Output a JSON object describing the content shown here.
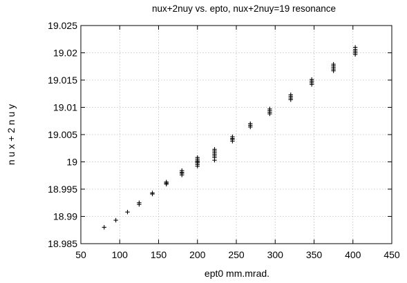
{
  "chart_data": {
    "type": "scatter",
    "title": "nux+2nuy vs.  epto, nux+2nuy=19 resonance",
    "xlabel": "ept0  mm.mrad.",
    "ylabel": "n u x + 2 n u y",
    "xlim": [
      50,
      450
    ],
    "ylim": [
      18.985,
      19.025
    ],
    "xticks": [
      50,
      100,
      150,
      200,
      250,
      300,
      350,
      400,
      450
    ],
    "yticks": [
      18.985,
      18.99,
      18.995,
      19,
      19.005,
      19.01,
      19.015,
      19.02,
      19.025
    ],
    "xtick_labels": [
      "50",
      "100",
      "150",
      "200",
      "250",
      "300",
      "350",
      "400",
      "450"
    ],
    "ytick_labels": [
      "18.985",
      "18.99",
      "18.995",
      "19",
      "19.005",
      "19.01",
      "19.015",
      "19.02",
      "19.025"
    ],
    "grid": true,
    "marker": "+",
    "series": [
      {
        "points": [
          {
            "x": 80,
            "y": [
              18.988
            ]
          },
          {
            "x": 95,
            "y": [
              18.9893
            ]
          },
          {
            "x": 110,
            "y": [
              18.9908
            ]
          },
          {
            "x": 125,
            "y": [
              18.9922,
              18.9925
            ]
          },
          {
            "x": 142,
            "y": [
              18.9941,
              18.9943
            ]
          },
          {
            "x": 160,
            "y": [
              18.9959,
              18.9961,
              18.9963
            ]
          },
          {
            "x": 180,
            "y": [
              18.9976,
              18.9979,
              18.9981,
              18.9984
            ]
          },
          {
            "x": 200,
            "y": [
              18.9992,
              18.9995,
              18.9998,
              19.0,
              19.0002,
              19.0005,
              19.0008
            ]
          },
          {
            "x": 222,
            "y": [
              19.0003,
              19.0008,
              19.0011,
              19.0014,
              19.0017,
              19.002,
              19.0023
            ]
          },
          {
            "x": 245,
            "y": [
              19.0038,
              19.0041,
              19.0043,
              19.0046
            ]
          },
          {
            "x": 268,
            "y": [
              19.0064,
              19.0067,
              19.007
            ]
          },
          {
            "x": 293,
            "y": [
              19.0088,
              19.0091,
              19.0094,
              19.0097
            ]
          },
          {
            "x": 320,
            "y": [
              19.0114,
              19.0117,
              19.012,
              19.0123
            ]
          },
          {
            "x": 347,
            "y": [
              19.0142,
              19.0145,
              19.0148,
              19.0151
            ]
          },
          {
            "x": 375,
            "y": [
              19.0167,
              19.017,
              19.0173,
              19.0176,
              19.0179
            ]
          },
          {
            "x": 403,
            "y": [
              19.0197,
              19.02,
              19.0203,
              19.0206,
              19.021
            ]
          }
        ]
      }
    ]
  }
}
